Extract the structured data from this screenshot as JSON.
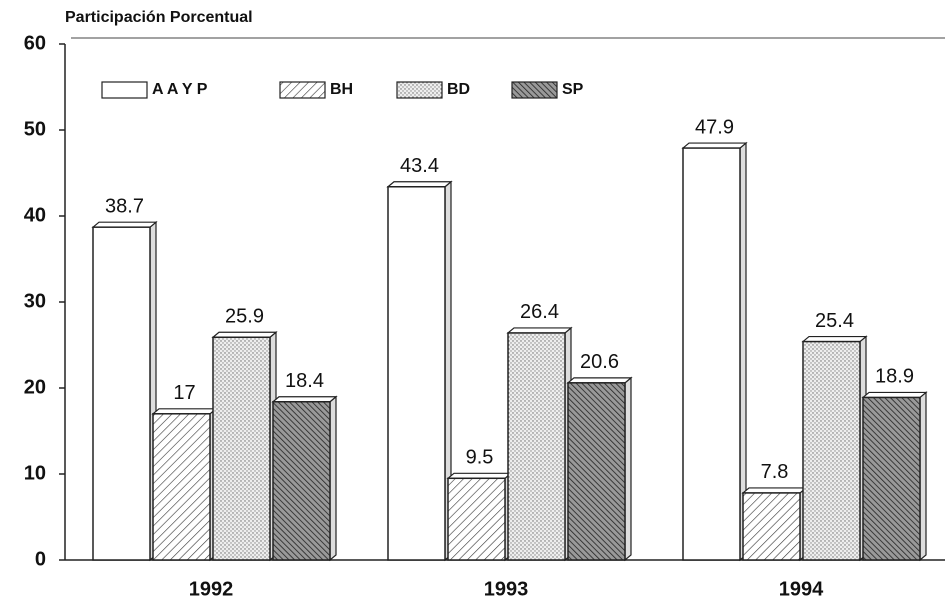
{
  "chart_data": {
    "type": "bar",
    "y_axis_label": "Participación Porcentual",
    "categories": [
      "1992",
      "1993",
      "1994"
    ],
    "series": [
      {
        "name": "A A Y P",
        "color": "#ffffff",
        "pattern": "none",
        "values": [
          38.7,
          43.4,
          47.9
        ]
      },
      {
        "name": "BH",
        "color": "#ffffff",
        "pattern": "hatch",
        "values": [
          17,
          9.5,
          7.8
        ]
      },
      {
        "name": "BD",
        "color": "#e6e6e6",
        "pattern": "dots",
        "values": [
          25.9,
          26.4,
          25.4
        ]
      },
      {
        "name": "SP",
        "color": "#777777",
        "pattern": "dense-hatch",
        "values": [
          18.4,
          20.6,
          18.9
        ]
      }
    ],
    "ylim": [
      0,
      60
    ],
    "yticks": [
      0,
      10,
      20,
      30,
      40,
      50,
      60
    ],
    "grid": false,
    "legend": "top-left"
  }
}
